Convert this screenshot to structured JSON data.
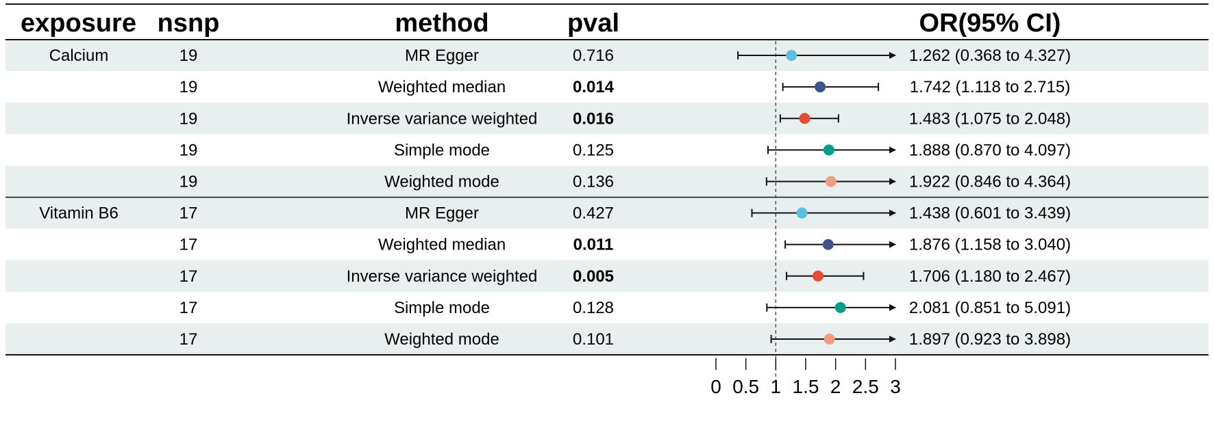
{
  "chart_data": {
    "type": "forest",
    "columns": {
      "exposure": "exposure",
      "nsnp": "nsnp",
      "method": "method",
      "pval": "pval",
      "or_ci": "OR(95% CI)"
    },
    "reference_line": 1,
    "xlim": [
      0,
      3
    ],
    "xticks": [
      "0",
      "0.5",
      "1",
      "1.5",
      "2",
      "2.5",
      "3"
    ],
    "significance_threshold": 0.05,
    "method_colors": {
      "MR Egger": "#5bc0de",
      "Weighted median": "#3c5488",
      "Inverse variance weighted": "#e64b35",
      "Simple mode": "#00a087",
      "Weighted mode": "#f39b7f"
    },
    "band_color": "#e8efee",
    "groups": [
      {
        "exposure": "Calcium",
        "rows": [
          {
            "nsnp": "19",
            "method": "MR Egger",
            "pval": "0.716",
            "or": 1.262,
            "lo": 0.368,
            "hi": 4.327,
            "or_text": "1.262 (0.368 to 4.327)"
          },
          {
            "nsnp": "19",
            "method": "Weighted median",
            "pval": "0.014",
            "or": 1.742,
            "lo": 1.118,
            "hi": 2.715,
            "or_text": "1.742 (1.118 to 2.715)"
          },
          {
            "nsnp": "19",
            "method": "Inverse variance weighted",
            "pval": "0.016",
            "or": 1.483,
            "lo": 1.075,
            "hi": 2.048,
            "or_text": "1.483 (1.075 to 2.048)"
          },
          {
            "nsnp": "19",
            "method": "Simple mode",
            "pval": "0.125",
            "or": 1.888,
            "lo": 0.87,
            "hi": 4.097,
            "or_text": "1.888 (0.870 to 4.097)"
          },
          {
            "nsnp": "19",
            "method": "Weighted mode",
            "pval": "0.136",
            "or": 1.922,
            "lo": 0.846,
            "hi": 4.364,
            "or_text": "1.922 (0.846 to 4.364)"
          }
        ]
      },
      {
        "exposure": "Vitamin B6",
        "rows": [
          {
            "nsnp": "17",
            "method": "MR Egger",
            "pval": "0.427",
            "or": 1.438,
            "lo": 0.601,
            "hi": 3.439,
            "or_text": "1.438 (0.601 to 3.439)"
          },
          {
            "nsnp": "17",
            "method": "Weighted median",
            "pval": "0.011",
            "or": 1.876,
            "lo": 1.158,
            "hi": 3.04,
            "or_text": "1.876 (1.158 to 3.040)"
          },
          {
            "nsnp": "17",
            "method": "Inverse variance weighted",
            "pval": "0.005",
            "or": 1.706,
            "lo": 1.18,
            "hi": 2.467,
            "or_text": "1.706 (1.180 to 2.467)"
          },
          {
            "nsnp": "17",
            "method": "Simple mode",
            "pval": "0.128",
            "or": 2.081,
            "lo": 0.851,
            "hi": 5.091,
            "or_text": "2.081 (0.851 to 5.091)"
          },
          {
            "nsnp": "17",
            "method": "Weighted mode",
            "pval": "0.101",
            "or": 1.897,
            "lo": 0.923,
            "hi": 3.898,
            "or_text": "1.897 (0.923 to 3.898)"
          }
        ]
      }
    ]
  }
}
